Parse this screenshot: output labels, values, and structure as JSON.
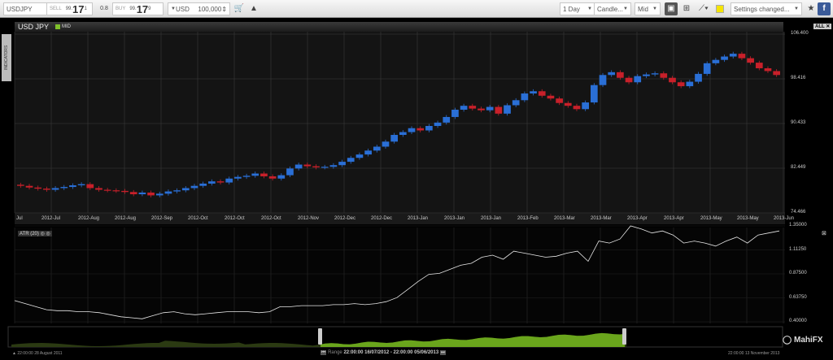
{
  "toolbar": {
    "symbol": "USDJPY",
    "sell_label": "SELL",
    "sell_prefix": "99.",
    "sell_big": "17",
    "sell_pip": "1",
    "spread": "0.8",
    "buy_label": "BUY",
    "buy_prefix": "99.",
    "buy_big": "17",
    "buy_pip": "9",
    "currency": "USD",
    "amount": "100,000",
    "interval": "1 Day",
    "chart_type": "Candle...",
    "price_type": "Mid",
    "settings": "Settings changed...",
    "color_swatch": "#f5e400"
  },
  "chart": {
    "title": "USD JPY",
    "mode": "MID",
    "all_label": "ALL",
    "indicators_tab": "INDICATORS",
    "colors": {
      "up": "#2a6fd6",
      "down": "#c8202a",
      "mid": "#7fc02a",
      "nav": "#6aa51c"
    }
  },
  "chart_data": [
    {
      "type": "candlestick",
      "title": "USD JPY",
      "y_ticks": [
        "106.400",
        "98.416",
        "90.433",
        "82.449",
        "74.466"
      ],
      "ylim": [
        74.466,
        106.4
      ],
      "x_ticks": [
        "Jul",
        "2012-Jul",
        "2012-Aug",
        "2012-Aug",
        "2012-Sep",
        "2012-Oct",
        "2012-Oct",
        "2012-Oct",
        "2012-Nov",
        "2012-Dec",
        "2012-Dec",
        "2013-Jan",
        "2013-Jan",
        "2013-Jan",
        "2013-Feb",
        "2013-Mar",
        "2013-Mar",
        "2013-Apr",
        "2013-Apr",
        "2013-May",
        "2013-May",
        "2013-Jun"
      ],
      "close": [
        79.3,
        79.0,
        78.8,
        78.6,
        78.9,
        79.1,
        79.4,
        79.6,
        78.9,
        78.6,
        78.5,
        78.4,
        78.2,
        77.8,
        78.1,
        77.6,
        77.9,
        78.3,
        78.5,
        78.9,
        79.3,
        79.7,
        80.1,
        79.9,
        80.6,
        80.9,
        81.1,
        81.5,
        81.0,
        80.6,
        81.2,
        82.4,
        83.1,
        82.8,
        82.6,
        82.7,
        83.0,
        83.6,
        84.3,
        84.9,
        85.6,
        86.3,
        87.2,
        88.4,
        88.9,
        89.6,
        89.2,
        90.0,
        90.6,
        91.6,
        92.9,
        93.6,
        93.1,
        92.8,
        93.4,
        92.2,
        93.7,
        94.6,
        95.8,
        96.2,
        95.4,
        94.9,
        94.1,
        93.6,
        93.0,
        94.2,
        97.3,
        99.1,
        99.6,
        98.6,
        97.8,
        98.9,
        99.2,
        99.4,
        98.6,
        97.8,
        97.1,
        97.9,
        99.3,
        101.2,
        101.8,
        102.4,
        102.9,
        102.1,
        101.3,
        100.3,
        99.8,
        99.1
      ]
    },
    {
      "type": "line",
      "title": "ATR (20)",
      "y_ticks": [
        "1.35000",
        "1.11250",
        "0.87500",
        "0.63750",
        "0.40000"
      ],
      "ylim": [
        0.4,
        1.35
      ],
      "values": [
        0.61,
        0.58,
        0.55,
        0.52,
        0.51,
        0.51,
        0.5,
        0.5,
        0.49,
        0.47,
        0.45,
        0.44,
        0.43,
        0.46,
        0.49,
        0.5,
        0.48,
        0.47,
        0.48,
        0.49,
        0.5,
        0.5,
        0.5,
        0.49,
        0.5,
        0.55,
        0.55,
        0.56,
        0.56,
        0.56,
        0.57,
        0.57,
        0.58,
        0.57,
        0.58,
        0.6,
        0.64,
        0.72,
        0.8,
        0.87,
        0.88,
        0.92,
        0.96,
        0.98,
        1.04,
        1.06,
        1.02,
        1.1,
        1.08,
        1.06,
        1.04,
        1.05,
        1.08,
        1.1,
        1.0,
        1.2,
        1.18,
        1.22,
        1.35,
        1.32,
        1.28,
        1.3,
        1.26,
        1.18,
        1.2,
        1.18,
        1.15,
        1.2,
        1.24,
        1.18,
        1.26,
        1.28,
        1.3
      ]
    }
  ],
  "navigator": {
    "start_date": "22:00:00 28 August 2011",
    "end_date": "22:00:00 13 November 2013",
    "range_label": "Range",
    "range_value": "22:00:00 16/07/2012 - 22:00:00 05/06/2013",
    "brand": "MahiFX"
  }
}
